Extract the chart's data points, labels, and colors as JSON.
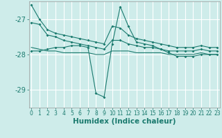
{
  "xlabel": "Humidex (Indice chaleur)",
  "background_color": "#ceecea",
  "grid_color": "#ffffff",
  "line_color": "#1a7a6e",
  "x": [
    0,
    1,
    2,
    3,
    4,
    5,
    6,
    7,
    8,
    9,
    10,
    11,
    12,
    13,
    14,
    15,
    16,
    17,
    18,
    19,
    20,
    21,
    22,
    23
  ],
  "series1": [
    -26.6,
    -27.0,
    -27.3,
    -27.4,
    -27.45,
    -27.5,
    -27.55,
    -27.6,
    -27.65,
    -27.7,
    -27.2,
    -27.25,
    -27.45,
    -27.55,
    -27.6,
    -27.65,
    -27.7,
    -27.75,
    -27.8,
    -27.8,
    -27.8,
    -27.75,
    -27.8,
    -27.8
  ],
  "series2": [
    -27.1,
    -27.15,
    -27.45,
    -27.5,
    -27.6,
    -27.65,
    -27.7,
    -27.75,
    -27.8,
    -27.85,
    -27.6,
    -27.6,
    -27.7,
    -27.75,
    -27.8,
    -27.8,
    -27.85,
    -27.9,
    -27.9,
    -27.9,
    -27.9,
    -27.85,
    -27.9,
    -27.9
  ],
  "series3": [
    -27.8,
    -27.85,
    -27.9,
    -27.9,
    -27.95,
    -27.95,
    -27.95,
    -27.95,
    -28.0,
    -28.0,
    -27.9,
    -27.9,
    -27.9,
    -27.95,
    -27.95,
    -27.95,
    -27.95,
    -28.0,
    -28.0,
    -28.0,
    -28.0,
    -27.95,
    -28.0,
    -28.0
  ],
  "series4": [
    -27.9,
    -27.9,
    -27.85,
    -27.8,
    -27.8,
    -27.75,
    -27.75,
    -27.8,
    -29.1,
    -29.2,
    -27.7,
    -26.65,
    -27.2,
    -27.65,
    -27.7,
    -27.75,
    -27.85,
    -27.95,
    -28.05,
    -28.05,
    -28.05,
    -28.0,
    -28.0,
    -28.0
  ],
  "ylim": [
    -29.5,
    -26.5
  ],
  "yticks": [
    -29,
    -28,
    -27
  ],
  "tick_fontsize": 7,
  "axis_fontsize": 7.5
}
